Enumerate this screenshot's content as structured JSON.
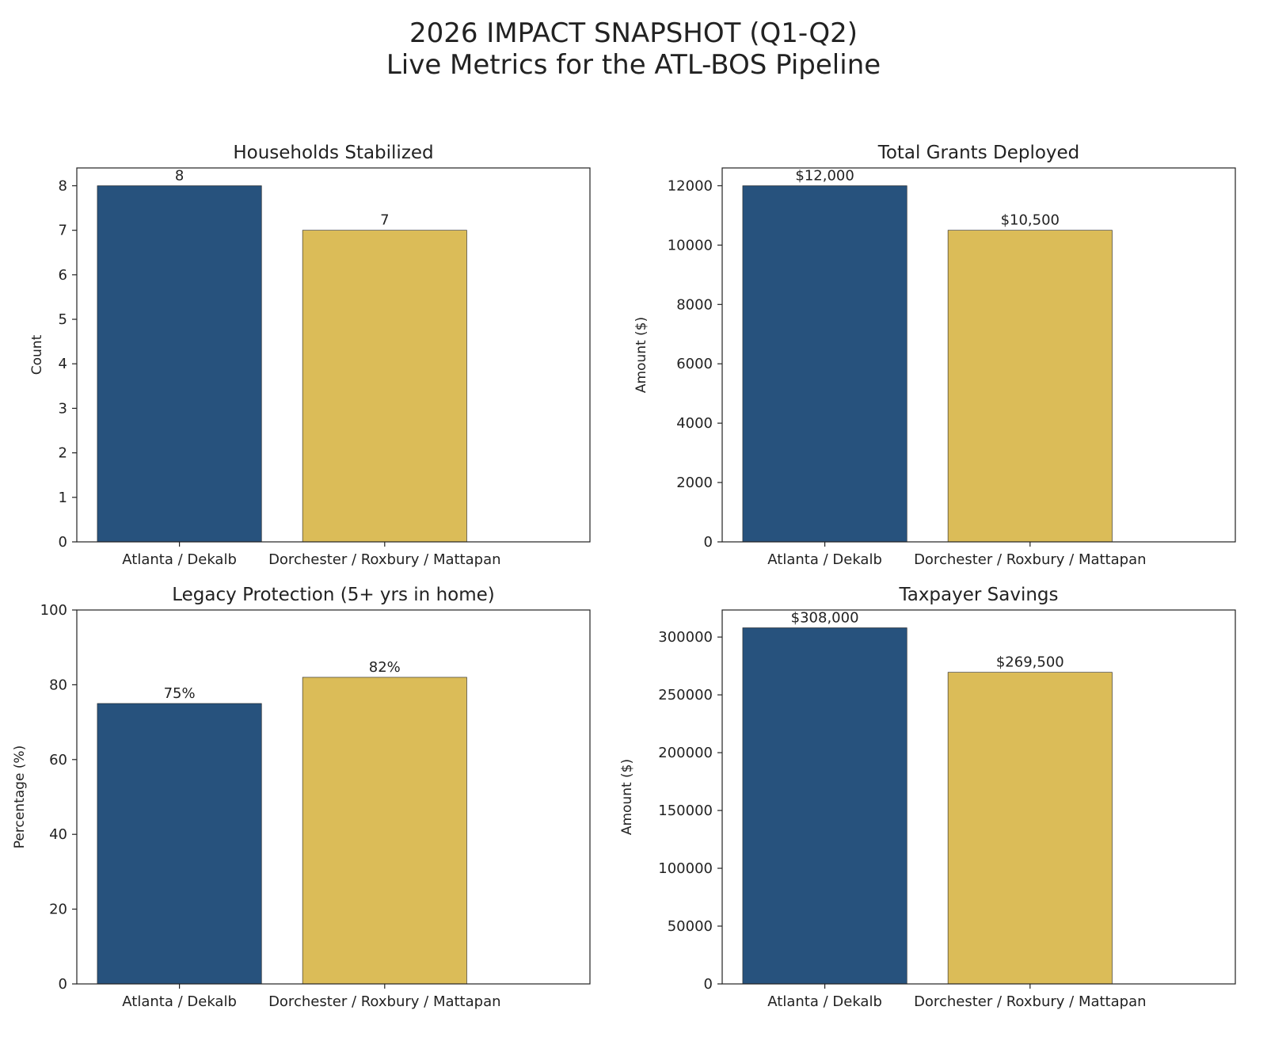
{
  "suptitle": {
    "line1": "2026 IMPACT SNAPSHOT (Q1-Q2)",
    "line2": "Live Metrics for the ATL-BOS Pipeline"
  },
  "colors": {
    "atlanta": "#27527d",
    "boston": "#dbbc58",
    "axis": "#222222"
  },
  "chart_data": [
    {
      "type": "bar",
      "title": "Households Stabilized",
      "categories": [
        "Atlanta / Dekalb",
        "Dorchester / Roxbury / Mattapan"
      ],
      "values": [
        8,
        7
      ],
      "data_labels": [
        "8",
        "7"
      ],
      "ylabel": "Count",
      "ylim": [
        0,
        8.4
      ],
      "yticks": [
        0,
        1,
        2,
        3,
        4,
        5,
        6,
        7,
        8
      ],
      "ytick_labels": [
        "0",
        "1",
        "2",
        "3",
        "4",
        "5",
        "6",
        "7",
        "8"
      ]
    },
    {
      "type": "bar",
      "title": "Total Grants Deployed",
      "categories": [
        "Atlanta / Dekalb",
        "Dorchester / Roxbury / Mattapan"
      ],
      "values": [
        12000,
        10500
      ],
      "data_labels": [
        "$12,000",
        "$10,500"
      ],
      "ylabel": "Amount ($)",
      "ylim": [
        0,
        12600
      ],
      "yticks": [
        0,
        2000,
        4000,
        6000,
        8000,
        10000,
        12000
      ],
      "ytick_labels": [
        "0",
        "2000",
        "4000",
        "6000",
        "8000",
        "10000",
        "12000"
      ]
    },
    {
      "type": "bar",
      "title": "Legacy Protection (5+ yrs in home)",
      "categories": [
        "Atlanta / Dekalb",
        "Dorchester / Roxbury / Mattapan"
      ],
      "values": [
        75,
        82
      ],
      "data_labels": [
        "75%",
        "82%"
      ],
      "ylabel": "Percentage (%)",
      "ylim": [
        0,
        100
      ],
      "yticks": [
        0,
        20,
        40,
        60,
        80,
        100
      ],
      "ytick_labels": [
        "0",
        "20",
        "40",
        "60",
        "80",
        "100"
      ]
    },
    {
      "type": "bar",
      "title": "Taxpayer Savings",
      "categories": [
        "Atlanta / Dekalb",
        "Dorchester / Roxbury / Mattapan"
      ],
      "values": [
        308000,
        269500
      ],
      "data_labels": [
        "$308,000",
        "$269,500"
      ],
      "ylabel": "Amount ($)",
      "ylim": [
        0,
        323400
      ],
      "yticks": [
        0,
        50000,
        100000,
        150000,
        200000,
        250000,
        300000
      ],
      "ytick_labels": [
        "0",
        "50000",
        "100000",
        "150000",
        "200000",
        "250000",
        "300000"
      ]
    }
  ]
}
